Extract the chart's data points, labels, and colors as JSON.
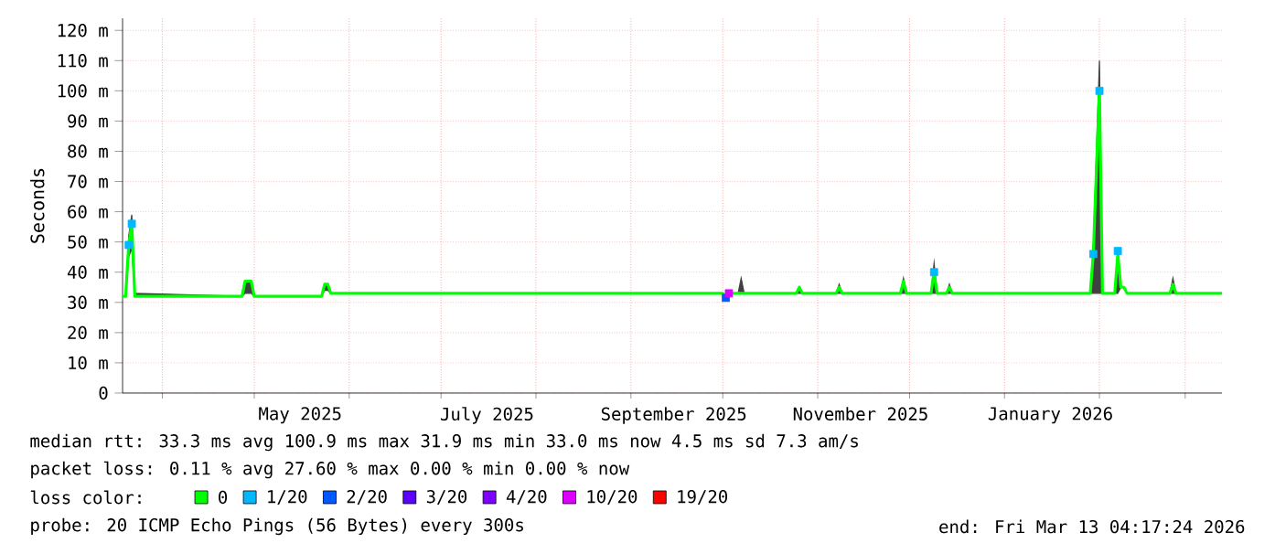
{
  "chart_data": {
    "type": "line",
    "ylabel": "Seconds",
    "legend_title": "loss color:",
    "xlim": [
      "2025-03-19",
      "2026-03-13"
    ],
    "xticks": [
      {
        "value": "2025-04-01",
        "label": null
      },
      {
        "value": "2025-05-01",
        "label": null
      },
      {
        "value": "2025-06-01",
        "label": null
      },
      {
        "value": "2025-07-01",
        "label": null
      },
      {
        "value": "2025-08-01",
        "label": null
      },
      {
        "value": "2025-09-01",
        "label": null
      },
      {
        "value": "2025-10-01",
        "label": null
      },
      {
        "value": "2025-11-01",
        "label": null
      },
      {
        "value": "2025-12-01",
        "label": null
      },
      {
        "value": "2026-01-01",
        "label": null
      },
      {
        "value": "2026-02-01",
        "label": null
      },
      {
        "value": "2026-03-01",
        "label": null
      },
      {
        "value": "2025-05-16",
        "label": "May 2025"
      },
      {
        "value": "2025-07-16",
        "label": "July 2025"
      },
      {
        "value": "2025-09-15",
        "label": "September 2025"
      },
      {
        "value": "2025-11-15",
        "label": "November 2025"
      },
      {
        "value": "2026-01-16",
        "label": "January 2026"
      }
    ],
    "ylim": [
      0,
      124
    ],
    "yticks": [
      0,
      {
        "value": 10,
        "label": "10 m"
      },
      {
        "value": 20,
        "label": "20 m"
      },
      {
        "value": 30,
        "label": "30 m"
      },
      {
        "value": 40,
        "label": "40 m"
      },
      {
        "value": 50,
        "label": "50 m"
      },
      {
        "value": 60,
        "label": "60 m"
      },
      {
        "value": 70,
        "label": "70 m"
      },
      {
        "value": 80,
        "label": "80 m"
      },
      {
        "value": 90,
        "label": "90 m"
      },
      {
        "value": 100,
        "label": "100 m"
      },
      {
        "value": 110,
        "label": "110 m"
      },
      {
        "value": 120,
        "label": "120 m"
      }
    ],
    "grid": true,
    "legend": "bottom",
    "series": [
      {
        "name": "0",
        "color": "#00ff00",
        "x": [
          "2025-03-19",
          "2025-03-20",
          "2025-03-21",
          "2025-03-22",
          "2025-03-23",
          "2025-04-27",
          "2025-04-28",
          "2025-04-30",
          "2025-05-01",
          "2025-05-23",
          "2025-05-24",
          "2025-05-25",
          "2025-05-26",
          "2025-10-01",
          "2025-10-02",
          "2025-10-03",
          "2025-10-06",
          "2025-10-07",
          "2025-10-08",
          "2025-10-25",
          "2025-10-26",
          "2025-10-27",
          "2025-11-07",
          "2025-11-08",
          "2025-11-09",
          "2025-11-28",
          "2025-11-29",
          "2025-11-30",
          "2025-12-08",
          "2025-12-09",
          "2025-12-10",
          "2025-12-13",
          "2025-12-14",
          "2025-12-15",
          "2026-01-29",
          "2026-01-30",
          "2026-02-01",
          "2026-02-02",
          "2026-02-06",
          "2026-02-07",
          "2026-02-08",
          "2026-02-09",
          "2026-02-10",
          "2026-02-24",
          "2026-02-25",
          "2026-02-26",
          "2026-03-13"
        ],
        "values": [
          32,
          32,
          49,
          56,
          32,
          32,
          37,
          37,
          32,
          32,
          36,
          36,
          33,
          33,
          31.5,
          33,
          33,
          33,
          33,
          33,
          35,
          33,
          33,
          35,
          33,
          33,
          37,
          33,
          33,
          40,
          33,
          33,
          35,
          33,
          33,
          46,
          100.9,
          33,
          33,
          46,
          35,
          35,
          33,
          33,
          36,
          33,
          33
        ],
        "lower": [
          32,
          32,
          45,
          48,
          32,
          32,
          33,
          33,
          32,
          32,
          34,
          34,
          33,
          33,
          31.5,
          33,
          33,
          33,
          33,
          33,
          33,
          33,
          33,
          33,
          33,
          33,
          33,
          33,
          33,
          33,
          33,
          33,
          33,
          33,
          33,
          33,
          33,
          33,
          33,
          33,
          35,
          35,
          33,
          33,
          33,
          33,
          33
        ],
        "upper": [
          32,
          32,
          52,
          59,
          33,
          32,
          37,
          37,
          32,
          32,
          36,
          36,
          33,
          33,
          31.5,
          33,
          33,
          38,
          33,
          33,
          35,
          33,
          33,
          36,
          33,
          33,
          38,
          33,
          33,
          43,
          33,
          33,
          36,
          33,
          33,
          48,
          110,
          33,
          33,
          48,
          35,
          35,
          33,
          33,
          38,
          33,
          33
        ]
      },
      {
        "name": "1/20",
        "color": "#00b8ff",
        "type": "scatter",
        "marker": "square",
        "x": [
          "2025-03-21",
          "2025-03-22",
          "2025-12-09",
          "2026-01-30",
          "2026-02-01",
          "2026-02-07"
        ],
        "values": [
          49,
          56,
          40,
          46,
          100,
          47
        ]
      },
      {
        "name": "2/20",
        "color": "#0059ff",
        "type": "scatter",
        "marker": "square",
        "x": [
          "2025-10-02"
        ],
        "values": [
          31.5
        ]
      },
      {
        "name": "3/20",
        "color": "#5e00ff",
        "type": "scatter"
      },
      {
        "name": "4/20",
        "color": "#7e00ff",
        "type": "scatter"
      },
      {
        "name": "10/20",
        "color": "#dd00ff",
        "type": "scatter",
        "marker": "square",
        "x": [
          "2025-10-03"
        ],
        "values": [
          33
        ]
      },
      {
        "name": "19/20",
        "color": "#ff0000",
        "type": "scatter"
      }
    ],
    "annotations": [
      "median rtt: 33.3 ms avg 100.9 ms max 31.9 ms min 33.0 ms now 4.5 ms sd 7.3 am/s",
      "packet loss: 0.11 % avg 27.60 % max 0.00 % min 0.00 % now",
      "probe: 20 ICMP Echo Pings (56 Bytes) every 300s",
      "end: Fri Mar 13 04:17:24 2026"
    ]
  }
}
